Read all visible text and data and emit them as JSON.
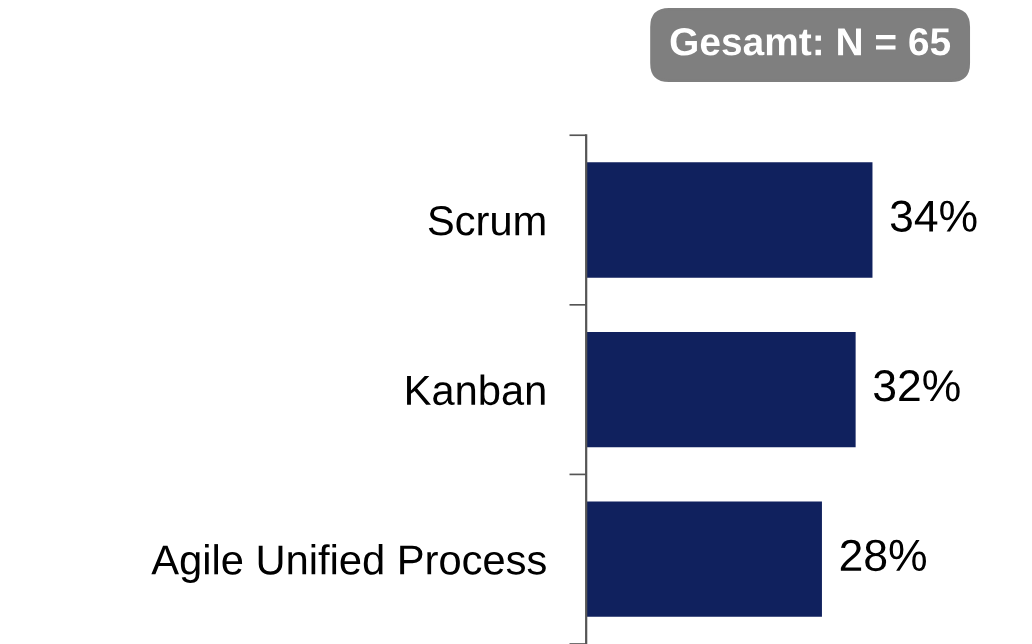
{
  "chart_data": {
    "type": "bar",
    "orientation": "horizontal",
    "categories": [
      "Scrum",
      "Kanban",
      "Agile Unified Process"
    ],
    "values": [
      34,
      32,
      28
    ],
    "color": "#10215e",
    "data_labels": true,
    "value_labels": [
      "34%",
      "32%",
      "28%"
    ],
    "annotations": [
      "Gesamt: N = 65"
    ]
  }
}
